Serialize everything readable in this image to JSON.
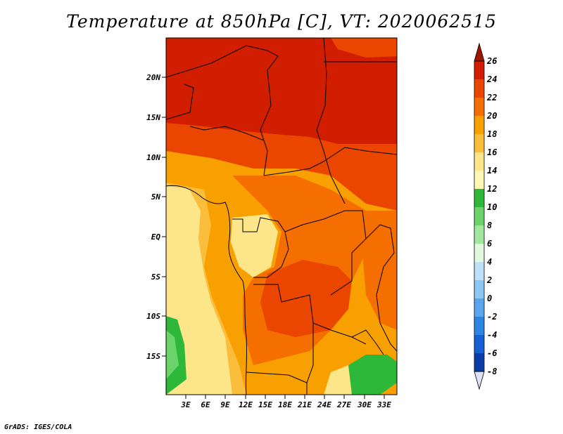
{
  "title": "Temperature at 850hPa [C], VT: 2020062515",
  "footer": "GrADS: IGES/COLA",
  "map": {
    "lat_ticks": [
      "20N",
      "15N",
      "10N",
      "5N",
      "EQ",
      "5S",
      "10S",
      "15S"
    ],
    "lon_ticks": [
      "3E",
      "6E",
      "9E",
      "12E",
      "15E",
      "18E",
      "21E",
      "24E",
      "27E",
      "30E",
      "33E"
    ]
  },
  "colorbar": {
    "labels": [
      "26",
      "24",
      "22",
      "20",
      "18",
      "16",
      "14",
      "12",
      "10",
      "8",
      "6",
      "4",
      "2",
      "0",
      "-2",
      "-4",
      "-6",
      "-8"
    ],
    "colors": {
      "above": "#a01400",
      "b24_26": "#d21e00",
      "b22_24": "#eb4600",
      "b20_22": "#f56e00",
      "b18_20": "#f8a000",
      "b16_18": "#fbbe3c",
      "b14_16": "#fde68a",
      "b12_14": "#fff8b4",
      "b10_12": "#2db83a",
      "b8_10": "#6ad36a",
      "b6_8": "#a0e8a0",
      "b4_6": "#e0f8e0",
      "b2_4": "#bfe0fb",
      "b0_2": "#8cc6f5",
      "bm2_0": "#5aa6ee",
      "bm4_m2": "#2e86e4",
      "bm6_m4": "#1560d2",
      "bm8_m6": "#0a3ca8",
      "below_m8": "#061e78",
      "below_tri": "#e0e0f8"
    }
  }
}
